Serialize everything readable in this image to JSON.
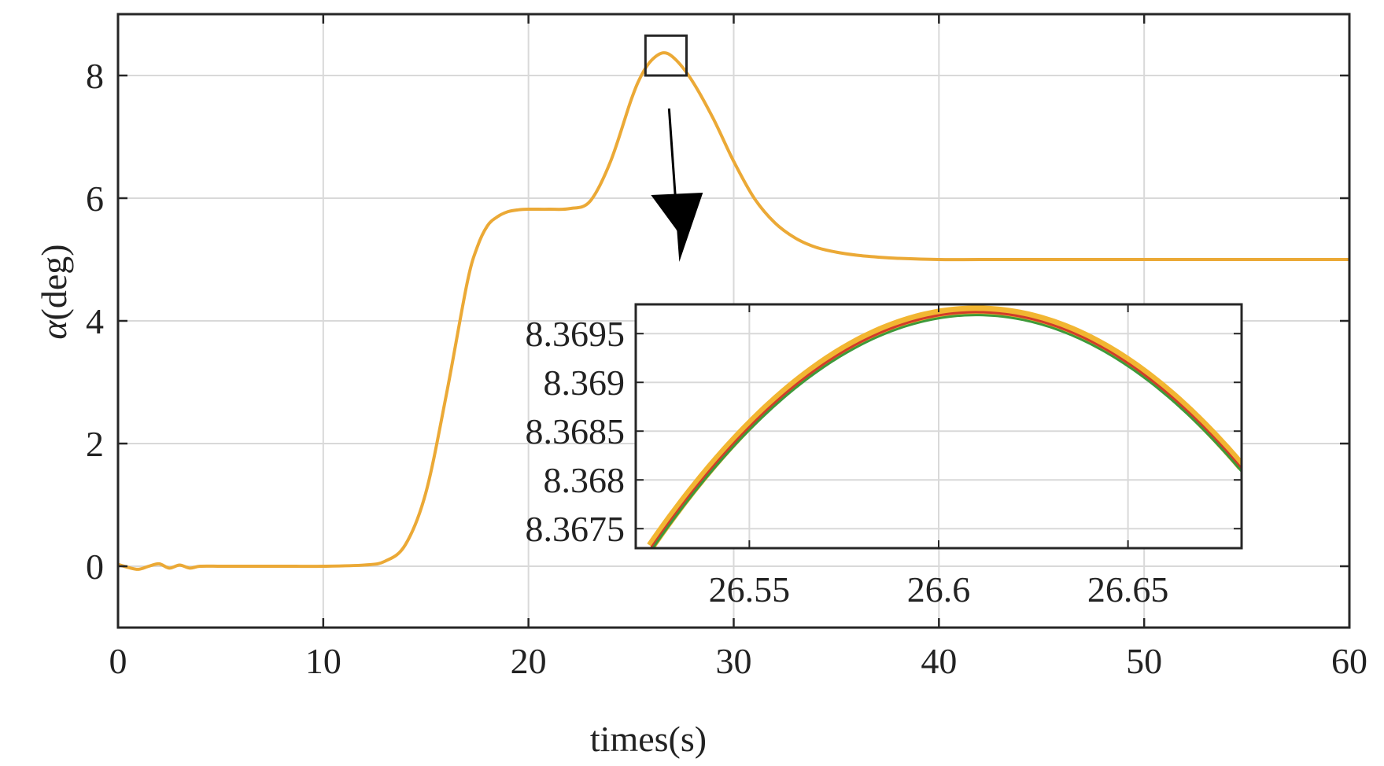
{
  "colors": {
    "main_series": "#EBA936",
    "inset_outer": "#F2B632",
    "inset_middle": "#D13B2A",
    "inset_inner": "#3E9A3A",
    "grid": "#d9d9d9",
    "axes": "#262626"
  },
  "chart_data": [
    {
      "type": "line",
      "xlabel": "times(s)",
      "ylabel_symbol": "α",
      "ylabel_unit": "(deg)",
      "xlim": [
        0,
        60
      ],
      "ylim": [
        -1,
        9
      ],
      "xticks": [
        0,
        10,
        20,
        30,
        40,
        50,
        60
      ],
      "yticks": [
        0,
        2,
        4,
        6,
        8
      ],
      "xtick_labels": [
        "0",
        "10",
        "20",
        "30",
        "40",
        "50",
        "60"
      ],
      "ytick_labels": [
        "0",
        "2",
        "4",
        "6",
        "8"
      ],
      "grid": true,
      "series": [
        {
          "x": [
            0,
            0.5,
            1,
            1.5,
            2,
            2.5,
            3,
            3.5,
            4,
            5,
            6,
            8,
            10,
            12,
            13,
            14,
            15,
            16,
            17,
            17.5,
            18,
            18.5,
            19,
            19.5,
            20,
            21,
            22,
            23,
            24,
            25,
            25.5,
            26,
            26.6,
            27.2,
            28,
            29,
            30,
            31,
            32,
            33,
            34,
            35,
            36,
            37,
            38,
            40,
            42,
            45,
            50,
            55,
            60
          ],
          "y": [
            0.03,
            -0.02,
            -0.05,
            0.0,
            0.04,
            -0.03,
            0.02,
            -0.03,
            0.0,
            0.0,
            0.0,
            0.0,
            0.0,
            0.02,
            0.08,
            0.35,
            1.2,
            2.8,
            4.6,
            5.2,
            5.55,
            5.7,
            5.78,
            5.81,
            5.82,
            5.82,
            5.83,
            5.95,
            6.6,
            7.6,
            8.0,
            8.25,
            8.37,
            8.25,
            7.9,
            7.3,
            6.6,
            6.0,
            5.6,
            5.35,
            5.2,
            5.12,
            5.07,
            5.04,
            5.02,
            5.0,
            5.0,
            5.0,
            5.0,
            5.0,
            5.0
          ]
        }
      ],
      "zoom_box": {
        "x_range": [
          25.7,
          27.7
        ],
        "y_range": [
          8.0,
          8.65
        ]
      }
    },
    {
      "type": "line",
      "xlim": [
        26.52,
        26.68
      ],
      "ylim": [
        8.3673,
        8.3698
      ],
      "xticks": [
        26.55,
        26.6,
        26.65
      ],
      "yticks": [
        8.3675,
        8.368,
        8.3685,
        8.369,
        8.3695
      ],
      "xtick_labels": [
        "26.55",
        "26.6",
        "26.65"
      ],
      "ytick_labels": [
        "8.3675",
        "8.368",
        "8.3685",
        "8.369",
        "8.3695"
      ],
      "grid": true,
      "peak": {
        "x": 26.61,
        "y": 8.36972
      },
      "series": [
        {
          "color_key": "inset_outer",
          "x": [
            26.524,
            26.68
          ],
          "y_offset": 2e-05
        },
        {
          "color_key": "inset_middle",
          "x": [
            26.524,
            26.68
          ],
          "y_offset": 0.0
        },
        {
          "color_key": "inset_inner",
          "x": [
            26.524,
            26.68
          ],
          "y_offset": -3e-05
        }
      ]
    }
  ]
}
